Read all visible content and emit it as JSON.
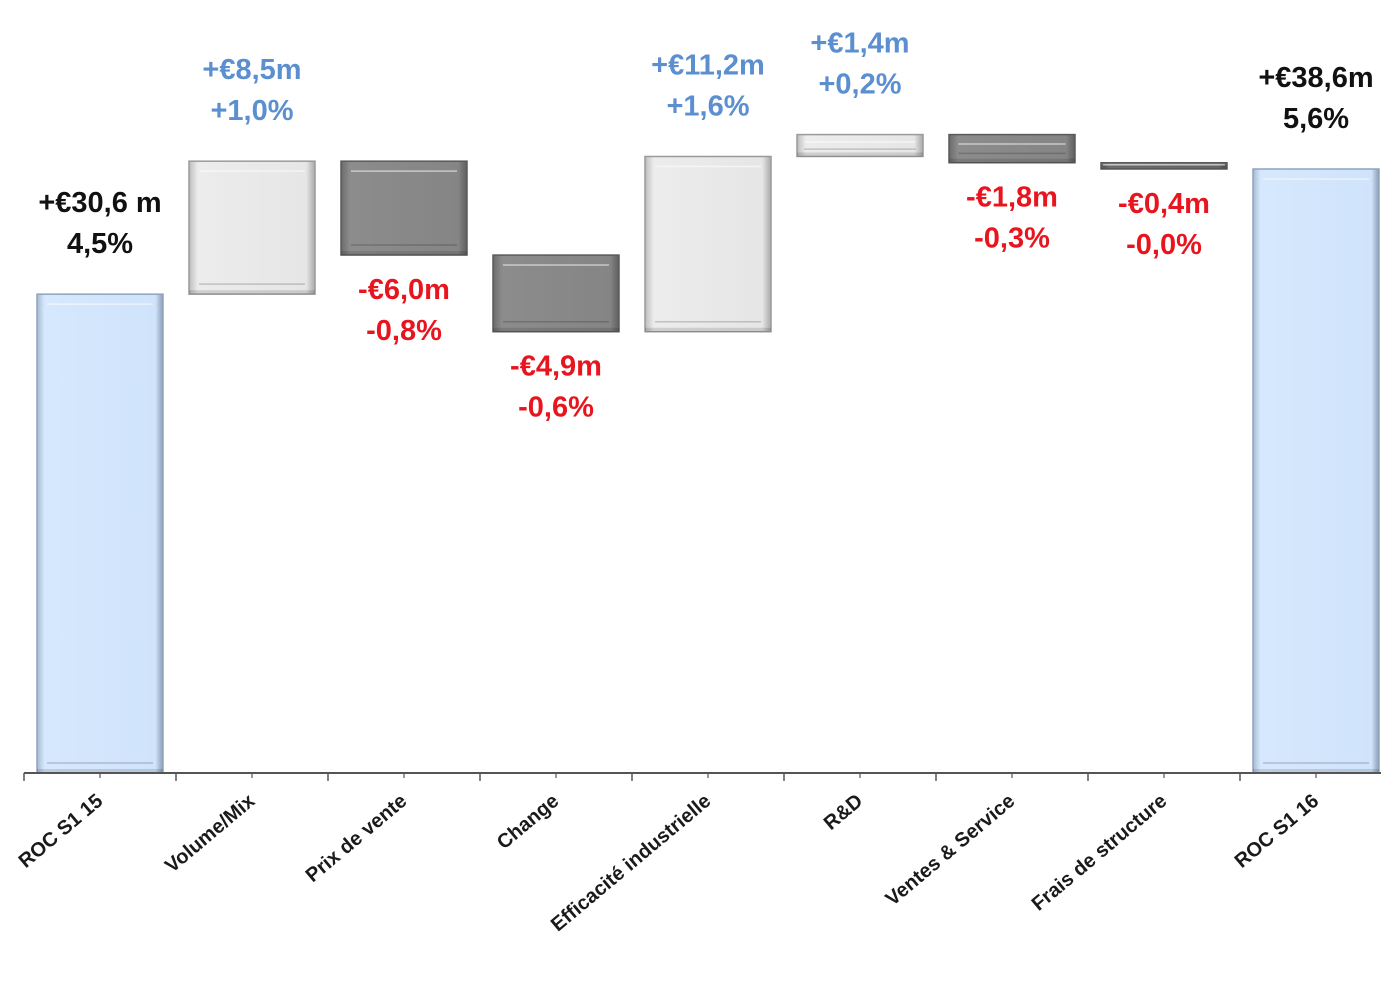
{
  "chart_data": {
    "type": "waterfall",
    "title": "",
    "xlabel": "",
    "ylabel": "",
    "ylim": [
      0,
      46
    ],
    "grid": false,
    "categories": [
      "ROC S1 15",
      "Volume/Mix",
      "Prix de vente",
      "Change",
      "Efficacité industrielle",
      "R&D",
      "Ventes & Service",
      "Frais de structure",
      "ROC S1  16"
    ],
    "bars": [
      {
        "kind": "total",
        "start": 0,
        "end": 30.6,
        "value_label": "+€30,6 m",
        "pct_label": "4,5%"
      },
      {
        "kind": "increase",
        "start": 30.6,
        "end": 39.1,
        "value_label": "+€8,5m",
        "pct_label": "+1,0%"
      },
      {
        "kind": "decrease",
        "start": 39.1,
        "end": 33.1,
        "value_label": "-€6,0m",
        "pct_label": "-0,8%"
      },
      {
        "kind": "decrease",
        "start": 33.1,
        "end": 28.2,
        "value_label": "-€4,9m",
        "pct_label": "-0,6%"
      },
      {
        "kind": "increase",
        "start": 28.2,
        "end": 39.4,
        "value_label": "+€11,2m",
        "pct_label": "+1,6%"
      },
      {
        "kind": "increase",
        "start": 39.4,
        "end": 40.8,
        "value_label": "+€1,4m",
        "pct_label": "+0,2%"
      },
      {
        "kind": "decrease",
        "start": 40.8,
        "end": 39.0,
        "value_label": "-€1,8m",
        "pct_label": "-0,3%"
      },
      {
        "kind": "decrease",
        "start": 39.0,
        "end": 38.6,
        "value_label": "-€0,4m",
        "pct_label": "-0,0%"
      },
      {
        "kind": "total",
        "start": 0,
        "end": 38.6,
        "value_label": "+€38,6m",
        "pct_label": "5,6%"
      }
    ],
    "colors": {
      "total_fill": "#cfe3fb",
      "total_edge": "#8ea3be",
      "increase_fill": "#e8e8e8",
      "increase_edge": "#9a9a9a",
      "decrease_fill": "#858585",
      "decrease_edge": "#5a5a5a",
      "label_total": "#111111",
      "label_increase": "#5b8fd0",
      "label_decrease": "#e8141e",
      "axis": "#555555"
    }
  }
}
